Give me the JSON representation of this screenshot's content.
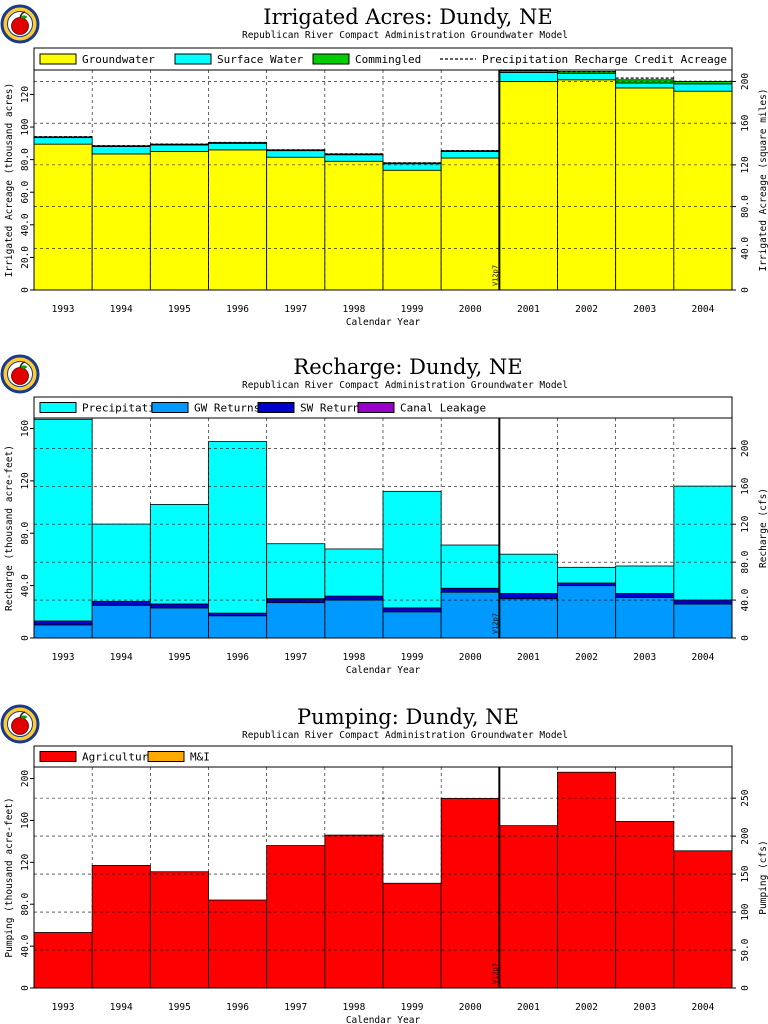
{
  "colors": {
    "groundwater": "#ffff00",
    "surface_water": "#00ffff",
    "commingled": "#00cc00",
    "precipitation": "#00ffff",
    "gw_returns": "#0099ff",
    "sw_returns": "#0000cc",
    "canal_leakage": "#9900cc",
    "agricultural": "#ff0000",
    "mi": "#ffaa00"
  },
  "chart_data": [
    {
      "type": "bar",
      "title": "Irrigated Acres: Dundy, NE",
      "subtitle": "Republican River Compact Administration Groundwater Model",
      "xlabel": "Calendar Year",
      "ylabel": "Irrigated Acreage (thousand acres)",
      "ylabel_right": "Irrigated Acreage (square miles)",
      "ylim": [
        0,
        135
      ],
      "yticks": [
        0,
        20,
        40,
        60,
        80,
        100,
        120
      ],
      "ytick_labels": [
        "0",
        "20.0",
        "40.0",
        "60.0",
        "80.0",
        "100",
        "120"
      ],
      "ylim_right": [
        0,
        211
      ],
      "yticks_right": [
        0,
        40,
        80,
        120,
        160,
        200
      ],
      "ytick_labels_right": [
        "0",
        "40.0",
        "80.0",
        "120",
        "160",
        "200"
      ],
      "categories": [
        "1993",
        "1994",
        "1995",
        "1996",
        "1997",
        "1998",
        "1999",
        "2000",
        "2001",
        "2002",
        "2003",
        "2004"
      ],
      "legend": [
        "Groundwater",
        "Surface Water",
        "Commingled",
        "Precipitation Recharge Credit Acreage"
      ],
      "series": [
        {
          "name": "Groundwater",
          "values": [
            89.5,
            83.5,
            85,
            86,
            81.5,
            79,
            73.5,
            81,
            128,
            129,
            124,
            122
          ]
        },
        {
          "name": "Surface Water",
          "values": [
            4,
            4.5,
            4,
            4,
            4,
            4,
            4,
            4,
            5.5,
            4,
            3,
            4.5
          ]
        },
        {
          "name": "Commingled",
          "values": [
            0.5,
            0.5,
            0.5,
            0.5,
            0.5,
            0.5,
            0.5,
            0.5,
            1,
            1,
            2,
            1.5
          ]
        }
      ],
      "dashed_line": {
        "name": "Precipitation Recharge Credit Acreage",
        "values": [
          94,
          88.5,
          89.5,
          90.5,
          86,
          83.5,
          78,
          85.5,
          135,
          134,
          130,
          128
        ]
      },
      "version_tag": "V12p7",
      "grid": true,
      "legend_position": "top"
    },
    {
      "type": "bar",
      "title": "Recharge: Dundy, NE",
      "subtitle": "Republican River Compact Administration Groundwater Model",
      "xlabel": "Calendar Year",
      "ylabel": "Recharge (thousand acre-feet)",
      "ylabel_right": "Recharge (cfs)",
      "ylim": [
        0,
        168
      ],
      "yticks": [
        0,
        40,
        80,
        120,
        160
      ],
      "ytick_labels": [
        "0",
        "40.0",
        "80.0",
        "120",
        "160"
      ],
      "ylim_right": [
        0,
        232
      ],
      "yticks_right": [
        0,
        40,
        80,
        120,
        160,
        200
      ],
      "ytick_labels_right": [
        "0",
        "40.0",
        "80.0",
        "120",
        "160",
        "200"
      ],
      "categories": [
        "1993",
        "1994",
        "1995",
        "1996",
        "1997",
        "1998",
        "1999",
        "2000",
        "2001",
        "2002",
        "2003",
        "2004"
      ],
      "legend": [
        "Precipitation",
        "GW Returns",
        "SW Returns",
        "Canal Leakage"
      ],
      "series": [
        {
          "name": "GW Returns",
          "values": [
            10,
            25,
            23,
            17,
            27,
            29,
            20,
            35,
            30,
            40,
            31,
            26
          ]
        },
        {
          "name": "SW Returns",
          "values": [
            3,
            3,
            3,
            2,
            3,
            3,
            3,
            3,
            4,
            2,
            3,
            3
          ]
        },
        {
          "name": "Canal Leakage",
          "values": [
            0,
            0,
            0,
            0,
            0,
            0,
            0,
            0,
            0,
            0,
            0,
            0
          ]
        },
        {
          "name": "Precipitation",
          "values": [
            154,
            59,
            76,
            131,
            42,
            36,
            89,
            33,
            30,
            12,
            21,
            87
          ]
        }
      ],
      "version_tag": "V12p7",
      "grid": true,
      "legend_position": "top"
    },
    {
      "type": "bar",
      "title": "Pumping: Dundy, NE",
      "subtitle": "Republican River Compact Administration Groundwater Model",
      "xlabel": "Calendar Year",
      "ylabel": "Pumping (thousand acre-feet)",
      "ylabel_right": "Pumping (cfs)",
      "ylim": [
        0,
        211
      ],
      "yticks": [
        0,
        40,
        80,
        120,
        160,
        200
      ],
      "ytick_labels": [
        "0",
        "40.0",
        "80.0",
        "120",
        "160",
        "200"
      ],
      "ylim_right": [
        0,
        291
      ],
      "yticks_right": [
        0,
        50,
        100,
        150,
        200,
        250
      ],
      "ytick_labels_right": [
        "0",
        "50.0",
        "100",
        "150",
        "200",
        "250"
      ],
      "categories": [
        "1993",
        "1994",
        "1995",
        "1996",
        "1997",
        "1998",
        "1999",
        "2000",
        "2001",
        "2002",
        "2003",
        "2004"
      ],
      "legend": [
        "Agricultural",
        "M&I"
      ],
      "series": [
        {
          "name": "Agricultural",
          "values": [
            53,
            117,
            111,
            84,
            136,
            146,
            100,
            181,
            155,
            206,
            159,
            131
          ]
        },
        {
          "name": "M&I",
          "values": [
            0,
            0,
            0,
            0,
            0,
            0,
            0,
            0,
            0,
            0,
            0,
            0
          ]
        }
      ],
      "version_tag": "V12p7",
      "grid": true,
      "legend_position": "top"
    }
  ]
}
